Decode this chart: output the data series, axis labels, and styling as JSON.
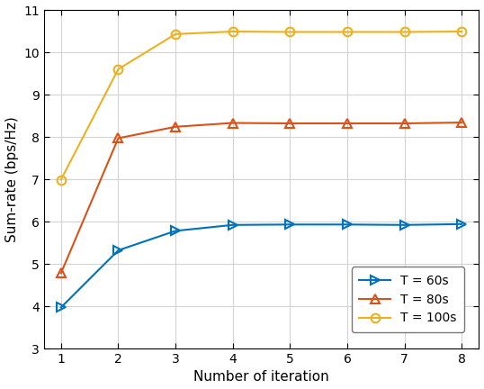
{
  "x": [
    1,
    2,
    3,
    4,
    5,
    6,
    7,
    8
  ],
  "y_60": [
    3.97,
    5.32,
    5.78,
    5.92,
    5.93,
    5.93,
    5.92,
    5.94
  ],
  "y_80": [
    4.78,
    7.97,
    8.24,
    8.33,
    8.32,
    8.32,
    8.32,
    8.34
  ],
  "y_100": [
    6.99,
    9.6,
    10.43,
    10.49,
    10.48,
    10.48,
    10.48,
    10.49
  ],
  "color_60": "#0072BD",
  "color_80": "#D95319",
  "color_100": "#EDB120",
  "xlabel": "Number of iteration",
  "ylabel": "Sum-rate (bps/Hz)",
  "xlim": [
    0.7,
    8.3
  ],
  "ylim": [
    3,
    11
  ],
  "yticks": [
    3,
    4,
    5,
    6,
    7,
    8,
    9,
    10,
    11
  ],
  "xticks": [
    1,
    2,
    3,
    4,
    5,
    6,
    7,
    8
  ],
  "legend_60": "T = 60s",
  "legend_80": "T = 80s",
  "legend_100": "T = 100s",
  "figsize": [
    5.38,
    4.32
  ],
  "dpi": 100
}
